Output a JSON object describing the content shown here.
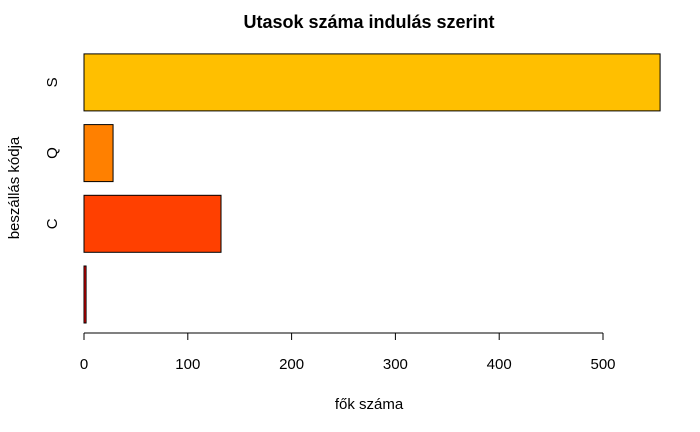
{
  "chart_data": {
    "type": "bar",
    "orientation": "horizontal",
    "title": "Utasok száma indulás szerint",
    "xlabel": "fők száma",
    "ylabel": "beszállás kódja",
    "categories": [
      "",
      "C",
      "Q",
      "S"
    ],
    "values": [
      2,
      132,
      28,
      555
    ],
    "colors": [
      "#FF0000",
      "#FF4000",
      "#FF8000",
      "#FFBF00"
    ],
    "xlim": [
      0,
      555
    ],
    "xticks": [
      0,
      100,
      200,
      300,
      400,
      500
    ],
    "grid": false,
    "legend": "none"
  }
}
